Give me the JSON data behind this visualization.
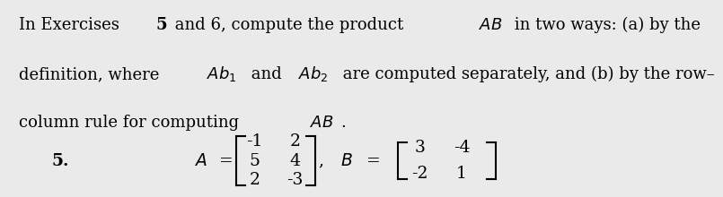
{
  "background_color": "#eaeaea",
  "text_color": "#000000",
  "A_matrix": [
    [
      -1,
      2
    ],
    [
      5,
      4
    ],
    [
      2,
      -3
    ]
  ],
  "B_matrix": [
    [
      3,
      -4
    ],
    [
      -2,
      1
    ]
  ],
  "font_size_text": 13.0,
  "font_size_matrix": 13.5,
  "font_size_exercise": 13.5,
  "line1_parts": [
    {
      "text": "In Exercises ",
      "bold": false,
      "italic": false,
      "math": false
    },
    {
      "text": "5",
      "bold": true,
      "italic": false,
      "math": false
    },
    {
      "text": " and 6, compute the product ",
      "bold": false,
      "italic": false,
      "math": false
    },
    {
      "text": "$AB$",
      "bold": false,
      "italic": false,
      "math": true
    },
    {
      "text": " in two ways: (a) by the",
      "bold": false,
      "italic": false,
      "math": false
    }
  ],
  "line2_parts": [
    {
      "text": "definition, where ",
      "bold": false,
      "italic": false,
      "math": false
    },
    {
      "text": "$Ab_1$",
      "bold": false,
      "italic": false,
      "math": true
    },
    {
      "text": " and ",
      "bold": false,
      "italic": false,
      "math": false
    },
    {
      "text": "$Ab_2$",
      "bold": false,
      "italic": false,
      "math": true
    },
    {
      "text": " are computed separately, and (b) by the row–",
      "bold": false,
      "italic": false,
      "math": false
    }
  ],
  "line3_parts": [
    {
      "text": "column rule for computing ",
      "bold": false,
      "italic": false,
      "math": false
    },
    {
      "text": "$AB$",
      "bold": false,
      "italic": false,
      "math": true
    },
    {
      "text": ".",
      "bold": false,
      "italic": false,
      "math": false
    }
  ]
}
